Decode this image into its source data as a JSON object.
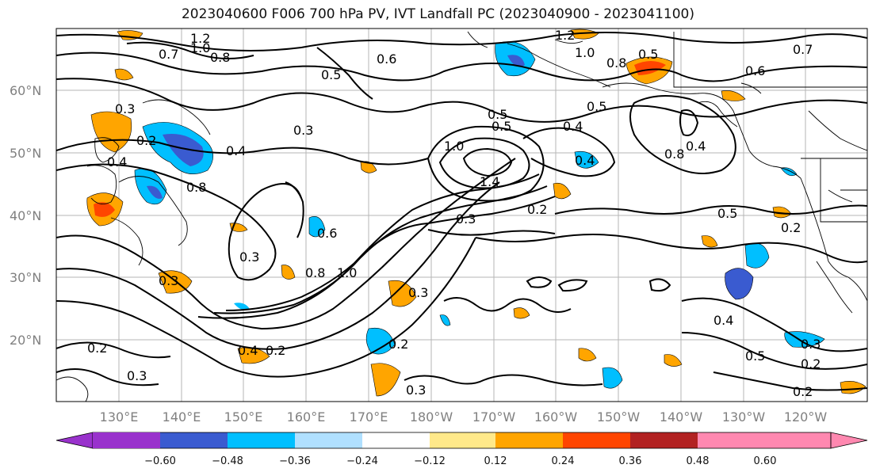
{
  "title": "2023040600 F006 700 hPa PV, IVT Landfall PC (2023040900 - 2023041100)",
  "lat_labels": [
    "60°N",
    "50°N",
    "40°N",
    "30°N",
    "20°N"
  ],
  "lon_labels": [
    "130°E",
    "140°E",
    "150°E",
    "160°E",
    "170°E",
    "180°W",
    "170°W",
    "160°W",
    "150°W",
    "140°W",
    "130°W",
    "120°W"
  ],
  "colorbar": {
    "colors": [
      "#9932cc",
      "#00008b",
      "#3a5bd0",
      "#00bfff",
      "#b0e0ff",
      "#ffffff",
      "#ffe98a",
      "#ffa500",
      "#ff4500",
      "#b22222",
      "#ff88b0"
    ],
    "tick_labels": [
      "−0.60",
      "−0.48",
      "−0.36",
      "−0.24",
      "−0.12",
      "0.12",
      "0.24",
      "0.36",
      "0.48",
      "0.60"
    ]
  },
  "contour_labels": [
    "1.2",
    "1.0",
    "0.8",
    "0.7",
    "0.5",
    "0.6",
    "1.2",
    "1.0",
    "0.8",
    "0.5",
    "0.6",
    "0.7",
    "0.3",
    "0.2",
    "0.4",
    "0.3",
    "0.8",
    "0.4",
    "0.3",
    "0.6",
    "0.3",
    "0.8",
    "0.5",
    "0.4",
    "0.5",
    "1.0",
    "1.4",
    "0.3",
    "0.2",
    "1.0",
    "0.4",
    "0.5",
    "0.2",
    "0.3",
    "0.4",
    "0.2",
    "0.2",
    "0.3",
    "0.3",
    "0.2",
    "0.3",
    "0.5",
    "0.4",
    "0.4",
    "0.5",
    "0.2",
    "0.2",
    "0.8"
  ]
}
